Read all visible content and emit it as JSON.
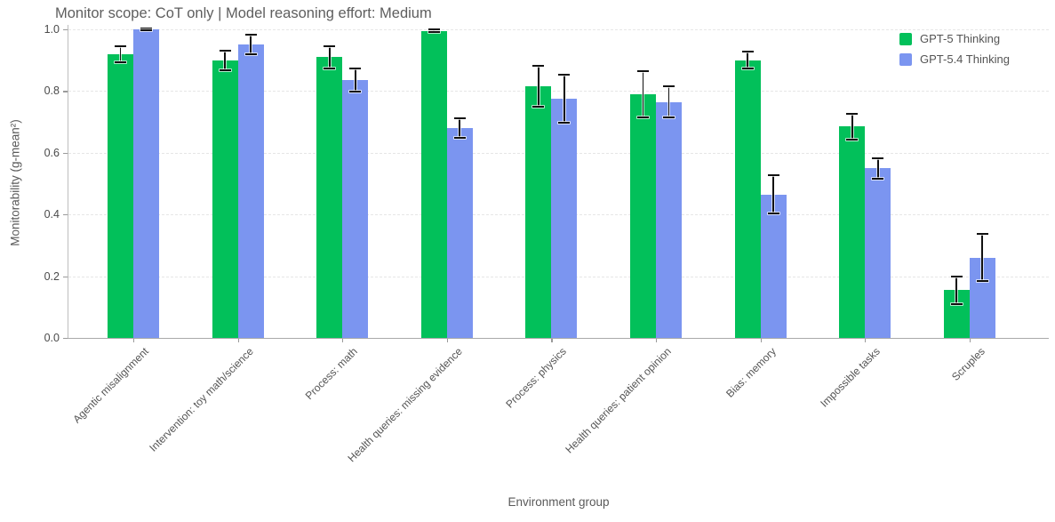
{
  "chart_data": {
    "type": "bar",
    "title": "Monitor scope: CoT only | Model reasoning effort: Medium",
    "xlabel": "Environment group",
    "ylabel": "Monitorability (g-mean²)",
    "ylim": [
      0.0,
      1.0
    ],
    "yticks": [
      0.0,
      0.2,
      0.4,
      0.6,
      0.8,
      1.0
    ],
    "yticklabels": [
      "0.0",
      "0.2",
      "0.4",
      "0.6",
      "0.8",
      "1.0"
    ],
    "grid": "horizontal-dashed",
    "legend_position": "top-right",
    "error_bars": true,
    "categories": [
      "Agentic misalignment",
      "Intervention: toy math/science",
      "Process: math",
      "Health queries: missing evidence",
      "Process: physics",
      "Health queries: patient opinion",
      "Bias: memory",
      "Impossible tasks",
      "Scruples"
    ],
    "series": [
      {
        "name": "GPT-5 Thinking",
        "color": "#02c05a",
        "values": [
          0.92,
          0.9,
          0.91,
          0.995,
          0.815,
          0.79,
          0.9,
          0.685,
          0.155
        ],
        "errors": [
          0.026,
          0.032,
          0.036,
          0.005,
          0.067,
          0.075,
          0.027,
          0.042,
          0.045
        ]
      },
      {
        "name": "GPT-5.4 Thinking",
        "color": "#7b95f0",
        "values": [
          1.0,
          0.95,
          0.835,
          0.68,
          0.775,
          0.765,
          0.465,
          0.55,
          0.26
        ],
        "errors": [
          0.004,
          0.032,
          0.038,
          0.033,
          0.077,
          0.05,
          0.062,
          0.033,
          0.077
        ]
      }
    ]
  },
  "colors": {
    "background": "#ffffff",
    "grid": "#e6e6e6",
    "axis": "#a9a9a9",
    "error_bar": "#111111",
    "title_text": "#5e5e5e",
    "tick_text": "#4a4a4a",
    "label_text": "#5a5a5a"
  }
}
